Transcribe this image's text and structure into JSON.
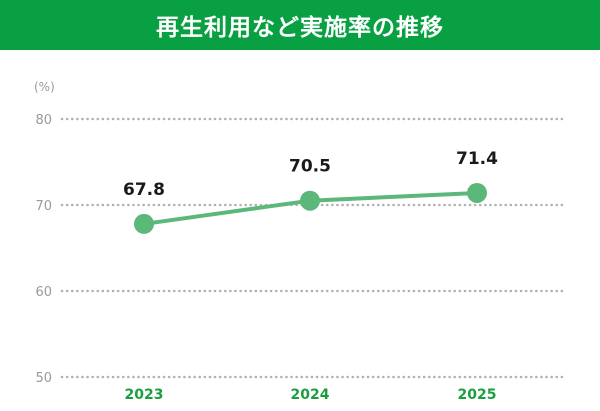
{
  "header": {
    "title": "再生利用など実施率の推移"
  },
  "chart_data": {
    "type": "line",
    "title": "再生利用など実施率の推移",
    "unit": "(%)",
    "categories": [
      "2023",
      "2024",
      "2025"
    ],
    "series": [
      {
        "values": [
          67.8,
          70.5,
          71.4
        ],
        "data_labels": [
          "67.8",
          "70.5",
          "71.4"
        ]
      }
    ],
    "yticks": [
      50,
      60,
      70,
      80
    ],
    "ylim": [
      50,
      80
    ],
    "grid": true,
    "grid_style": "dotted",
    "legend": "none",
    "colors": {
      "line": "#5bb87a",
      "marker": "#5bb87a",
      "x_tick_label": "#1a9e3f",
      "y_tick_label": "#9a9a9a",
      "grid": "#b0b0b0",
      "data_label": "#1a1a1a",
      "title_bar": "#09a043",
      "title_text": "#ffffff"
    }
  }
}
